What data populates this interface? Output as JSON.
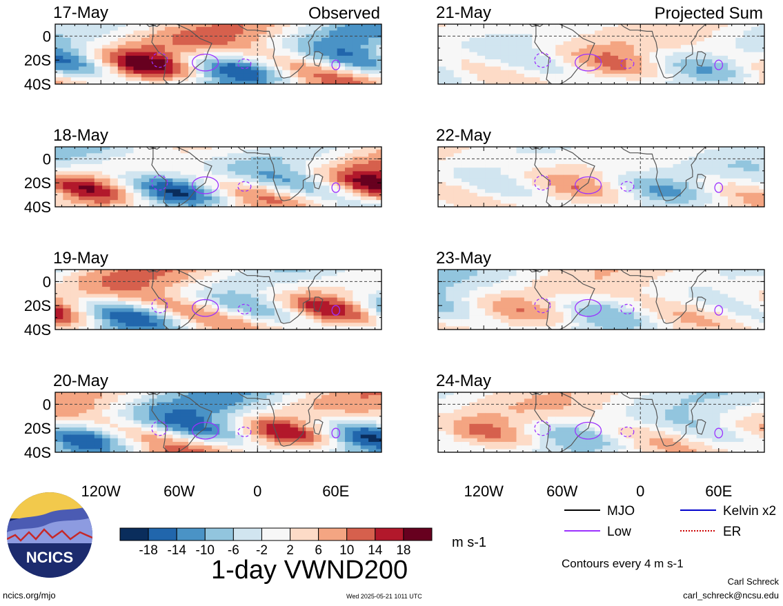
{
  "figure": {
    "main_title": "1-day VWND200",
    "units": "m s-1",
    "contours_note": "Contours every 4 m s-1",
    "author": "Carl Schreck",
    "email": "carl_schreck@ncsu.edu",
    "site": "ncics.org/mjo",
    "timestamp": "Wed 2025-05-21 1011 UTC",
    "logo_text": "NCICS"
  },
  "columns": {
    "left_label": "Observed",
    "right_label": "Projected Sum"
  },
  "colorbar": {
    "ticks": [
      "-18",
      "-14",
      "-10",
      "-6",
      "-2",
      "2",
      "6",
      "10",
      "14",
      "18"
    ],
    "colors": [
      "#0a2d5c",
      "#2166ac",
      "#4a93c6",
      "#92c5de",
      "#d1e5f0",
      "#f7f7f7",
      "#fddbc7",
      "#f4a582",
      "#d6604d",
      "#b2182b",
      "#67001f"
    ]
  },
  "legend": {
    "items": [
      {
        "label": "MJO",
        "color": "#000000",
        "style": "solid"
      },
      {
        "label": "Kelvin x2",
        "color": "#0000cc",
        "style": "solid"
      },
      {
        "label": "Low",
        "color": "#9b30ff",
        "style": "solid"
      },
      {
        "label": "ER",
        "color": "#cc0000",
        "style": "dotted"
      }
    ]
  },
  "chart_data": {
    "type": "heatmap",
    "variable": "1-day VWND200",
    "units": "m s-1",
    "x_ticks": [
      "120W",
      "60W",
      "0",
      "60E"
    ],
    "y_ticks": [
      "0",
      "20S",
      "40S"
    ],
    "x_range_deg": [
      -155,
      95
    ],
    "y_range_deg": [
      -40,
      10
    ],
    "panels": [
      {
        "column": "Observed",
        "date": "17-May"
      },
      {
        "column": "Observed",
        "date": "18-May"
      },
      {
        "column": "Observed",
        "date": "19-May"
      },
      {
        "column": "Observed",
        "date": "20-May"
      },
      {
        "column": "Projected Sum",
        "date": "21-May"
      },
      {
        "column": "Projected Sum",
        "date": "22-May"
      },
      {
        "column": "Projected Sum",
        "date": "23-May"
      },
      {
        "column": "Projected Sum",
        "date": "24-May"
      }
    ]
  }
}
